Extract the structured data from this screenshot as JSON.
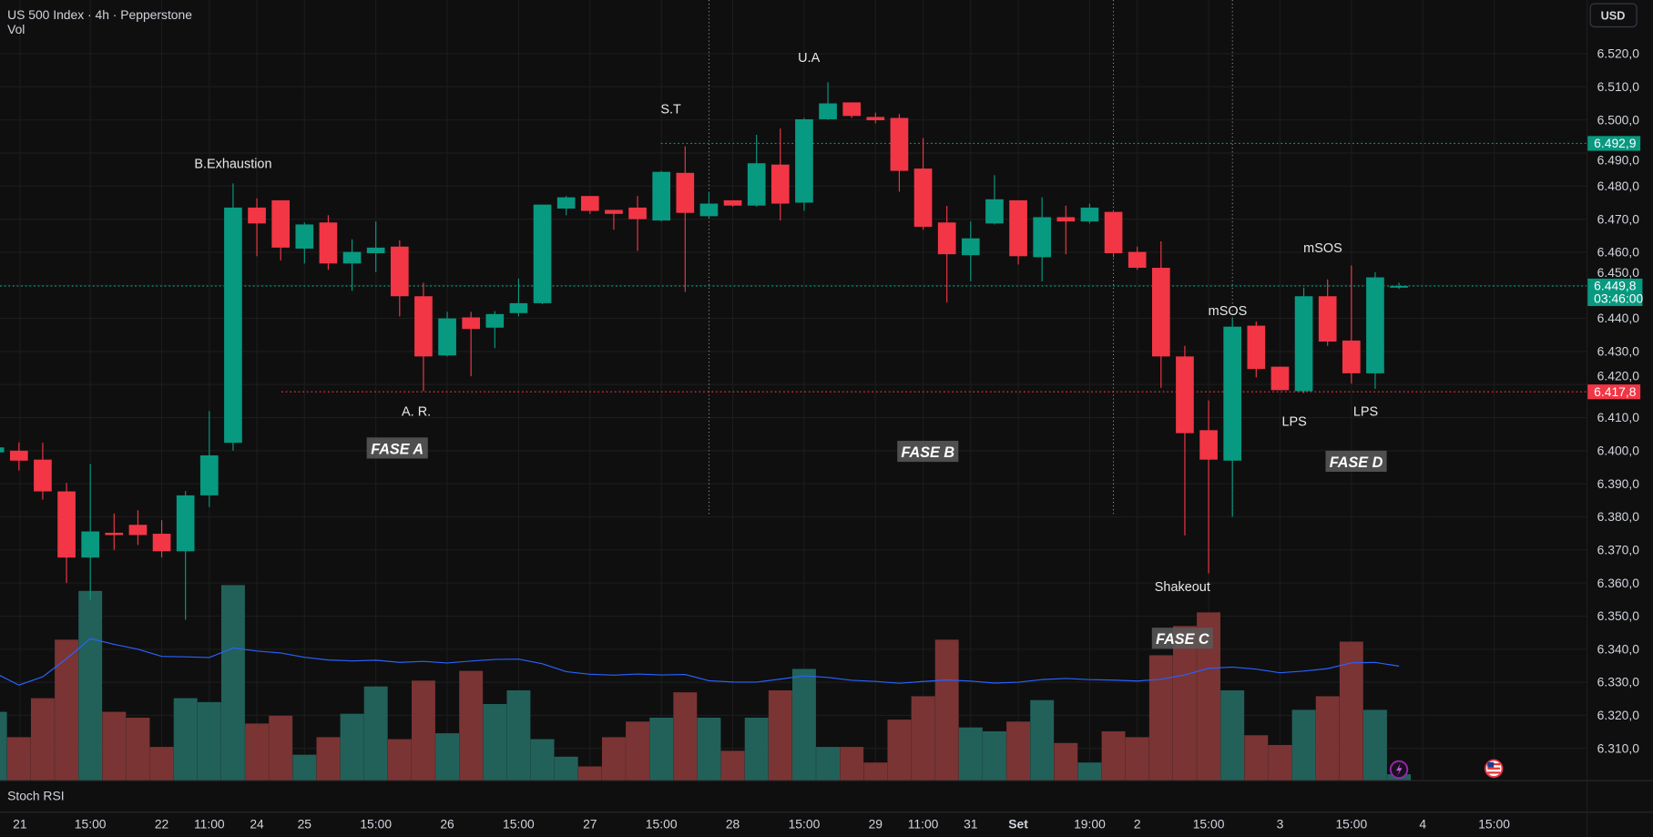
{
  "header": {
    "title": "US 500 Index · 4h · Pepperstone",
    "volume_label": "Vol"
  },
  "currency_button": "USD",
  "lower_pane": {
    "label": "Stoch RSI"
  },
  "price_axis": {
    "ticks": [
      "6.520,0",
      "6.510,0",
      "6.500,0",
      "6.490,0",
      "6.480,0",
      "6.470,0",
      "6.460,0",
      "6.450,0",
      "6.440,0",
      "6.430,0",
      "6.420,0",
      "6.410,0",
      "6.400,0",
      "6.390,0",
      "6.380,0",
      "6.370,0",
      "6.360,0",
      "6.350,0",
      "6.340,0",
      "6.330,0",
      "6.320,0",
      "6.310,0"
    ],
    "tick_values": [
      6520,
      6510,
      6500,
      6490,
      6480,
      6470,
      6460,
      6450,
      6440,
      6430,
      6420,
      6410,
      6400,
      6390,
      6380,
      6370,
      6360,
      6350,
      6340,
      6330,
      6320,
      6310
    ],
    "level_high": {
      "value": 6492.9,
      "label": "6.492,9",
      "color": "#089981"
    },
    "level_current": {
      "value": 6449.8,
      "label": "6.449,8",
      "countdown": "03:46:00",
      "color": "#089981"
    },
    "level_low": {
      "value": 6417.8,
      "label": "6.417,8",
      "color": "#f23645"
    }
  },
  "time_axis": [
    {
      "label": "21",
      "i": 1.04
    },
    {
      "label": "15:00",
      "i": 4
    },
    {
      "label": "22",
      "i": 7
    },
    {
      "label": "11:00",
      "i": 9
    },
    {
      "label": "24",
      "i": 11
    },
    {
      "label": "25",
      "i": 13
    },
    {
      "label": "15:00",
      "i": 16
    },
    {
      "label": "26",
      "i": 19
    },
    {
      "label": "15:00",
      "i": 22
    },
    {
      "label": "27",
      "i": 25
    },
    {
      "label": "15:00",
      "i": 28
    },
    {
      "label": "28",
      "i": 31
    },
    {
      "label": "15:00",
      "i": 34
    },
    {
      "label": "29",
      "i": 37
    },
    {
      "label": "11:00",
      "i": 39
    },
    {
      "label": "31",
      "i": 41
    },
    {
      "label": "Set",
      "i": 43,
      "bold": true
    },
    {
      "label": "19:00",
      "i": 46
    },
    {
      "label": "2",
      "i": 48
    },
    {
      "label": "15:00",
      "i": 51
    },
    {
      "label": "3",
      "i": 54
    },
    {
      "label": "15:00",
      "i": 57
    },
    {
      "label": "4",
      "i": 60
    },
    {
      "label": "15:00",
      "i": 63
    }
  ],
  "colors": {
    "up": "#089981",
    "down": "#f23645",
    "vol_up": "#22615a",
    "vol_down": "#7a3434",
    "vol_ma": "#2962ff",
    "background": "#0f0f0f"
  },
  "chart_data": {
    "type": "candlestick",
    "symbol": "US 500 Index",
    "interval": "4h",
    "candles": [
      [
        6399.5,
        6402,
        6398,
        6401
      ],
      [
        6400,
        6402.5,
        6394,
        6397
      ],
      [
        6397.3,
        6402.4,
        6385.2,
        6387.7
      ],
      [
        6387.7,
        6390.3,
        6360,
        6367.7
      ],
      [
        6367.7,
        6396,
        6355,
        6375.6
      ],
      [
        6375.2,
        6381,
        6370,
        6374.5
      ],
      [
        6377.6,
        6382,
        6371.5,
        6374.5
      ],
      [
        6374.9,
        6379,
        6367.7,
        6369.6
      ],
      [
        6369.6,
        6387.8,
        6348.9,
        6386.5
      ],
      [
        6386.5,
        6412,
        6383,
        6398.6
      ],
      [
        6402.4,
        6480.8,
        6400,
        6473.5
      ],
      [
        6473.5,
        6476.3,
        6458.8,
        6468.7
      ],
      [
        6475.7,
        6475.7,
        6457.5,
        6461.4
      ],
      [
        6461.1,
        6469,
        6456.6,
        6468.4
      ],
      [
        6469,
        6471.2,
        6454.7,
        6456.6
      ],
      [
        6456.6,
        6463.9,
        6448.3,
        6460.1
      ],
      [
        6459.7,
        6469.3,
        6454,
        6461.4
      ],
      [
        6461.7,
        6463.6,
        6440.6,
        6446.7
      ],
      [
        6446.7,
        6450.8,
        6418,
        6428.5
      ],
      [
        6428.8,
        6442,
        6428.5,
        6440
      ],
      [
        6440.3,
        6442,
        6422.5,
        6436.8
      ],
      [
        6437.2,
        6442.2,
        6431,
        6441.3
      ],
      [
        6441.6,
        6452,
        6440.6,
        6444.6
      ],
      [
        6444.6,
        6474.4,
        6444.3,
        6474.4
      ],
      [
        6473.2,
        6477,
        6471.2,
        6476.6
      ],
      [
        6477,
        6477,
        6471.6,
        6472.5
      ],
      [
        6472.8,
        6472.8,
        6466.8,
        6471.6
      ],
      [
        6473.5,
        6477,
        6460.4,
        6470
      ],
      [
        6469.6,
        6484.6,
        6469.3,
        6484.3
      ],
      [
        6484,
        6492,
        6448,
        6471.9
      ],
      [
        6470.9,
        6478.3,
        6470.3,
        6474.7
      ],
      [
        6475.7,
        6475.7,
        6473.8,
        6474.1
      ],
      [
        6474.1,
        6495.5,
        6473.8,
        6486.9
      ],
      [
        6486.5,
        6497.4,
        6469.6,
        6474.7
      ],
      [
        6475,
        6500.6,
        6472.5,
        6500.2
      ],
      [
        6500.2,
        6511.4,
        6500,
        6505
      ],
      [
        6505.3,
        6505.3,
        6500.6,
        6501.2
      ],
      [
        6500.9,
        6502.2,
        6499,
        6499.9
      ],
      [
        6500.6,
        6501.8,
        6478.3,
        6484.6
      ],
      [
        6485.3,
        6494.5,
        6466.8,
        6467.7
      ],
      [
        6469,
        6474,
        6444.8,
        6459.4
      ],
      [
        6459.1,
        6469.3,
        6451.2,
        6464.2
      ],
      [
        6468.7,
        6483.3,
        6468.4,
        6476
      ],
      [
        6475.7,
        6475.7,
        6456.3,
        6458.8
      ],
      [
        6458.5,
        6476.6,
        6451.2,
        6470.6
      ],
      [
        6470.6,
        6474.1,
        6459.4,
        6469.3
      ],
      [
        6469.3,
        6474.7,
        6468.7,
        6473.5
      ],
      [
        6472.2,
        6472.2,
        6458.5,
        6459.7
      ],
      [
        6460.1,
        6461.7,
        6454.7,
        6455.3
      ],
      [
        6455.3,
        6463.3,
        6419,
        6428.5
      ],
      [
        6428.5,
        6431.7,
        6374.4,
        6405.3
      ],
      [
        6406.2,
        6415.2,
        6362.9,
        6397.3
      ],
      [
        6397,
        6440,
        6380,
        6437.5
      ],
      [
        6437.8,
        6439.1,
        6422.2,
        6424.7
      ],
      [
        6425.4,
        6425.4,
        6418.3,
        6418.3
      ],
      [
        6418,
        6449.3,
        6417.4,
        6446.7
      ],
      [
        6446.7,
        6451.8,
        6431.7,
        6433
      ],
      [
        6433.3,
        6456,
        6420.3,
        6423.4
      ],
      [
        6423.4,
        6454,
        6418.7,
        6452.4
      ],
      [
        6449.3,
        6450.8,
        6448.9,
        6449.8
      ]
    ],
    "candle_fields": [
      "open",
      "high",
      "low",
      "close"
    ],
    "relative_volume": [
      35,
      22,
      42,
      72,
      97,
      35,
      32,
      17,
      42,
      40,
      100,
      29,
      33,
      13,
      22,
      34,
      48,
      21,
      51,
      24,
      56,
      39,
      46,
      21,
      12,
      7,
      22,
      30,
      32,
      45,
      32,
      15,
      32,
      46,
      57,
      17,
      17,
      9,
      31,
      43,
      72,
      27,
      25,
      30,
      41,
      19,
      9,
      25,
      22,
      64,
      79,
      86,
      46,
      23,
      18,
      36,
      43,
      71,
      36,
      3
    ],
    "ylim": [
      6300,
      6525
    ]
  },
  "annotations": [
    {
      "text": "B.Exhaustion",
      "i": 10,
      "price": 6485.5
    },
    {
      "text": "A. R.",
      "i": 17.7,
      "price": 6410.5
    },
    {
      "text": "S.T",
      "i": 28.4,
      "price": 6502
    },
    {
      "text": "U.A",
      "i": 34.2,
      "price": 6517.5
    },
    {
      "text": "Shakeout",
      "i": 49.9,
      "price": 6357.5
    },
    {
      "text": "mSOS",
      "i": 51.8,
      "price": 6441
    },
    {
      "text": "LPS",
      "i": 54.6,
      "price": 6407.5
    },
    {
      "text": "LPS",
      "i": 57.6,
      "price": 6410.5
    },
    {
      "text": "mSOS",
      "i": 55.8,
      "price": 6460
    }
  ],
  "phases": [
    {
      "text": "FASE A",
      "i": 16.9,
      "price": 6400.5
    },
    {
      "text": "FASE B",
      "i": 39.2,
      "price": 6399.5
    },
    {
      "text": "FASE C",
      "i": 49.9,
      "price": 6343
    },
    {
      "text": "FASE D",
      "i": 57.2,
      "price": 6396.5
    }
  ],
  "vertical_markers": [
    {
      "i": 30
    },
    {
      "i": 47
    },
    {
      "i": 52
    }
  ],
  "icons": {
    "event_1": "lightning-icon",
    "event_2": "us-flag-icon"
  }
}
